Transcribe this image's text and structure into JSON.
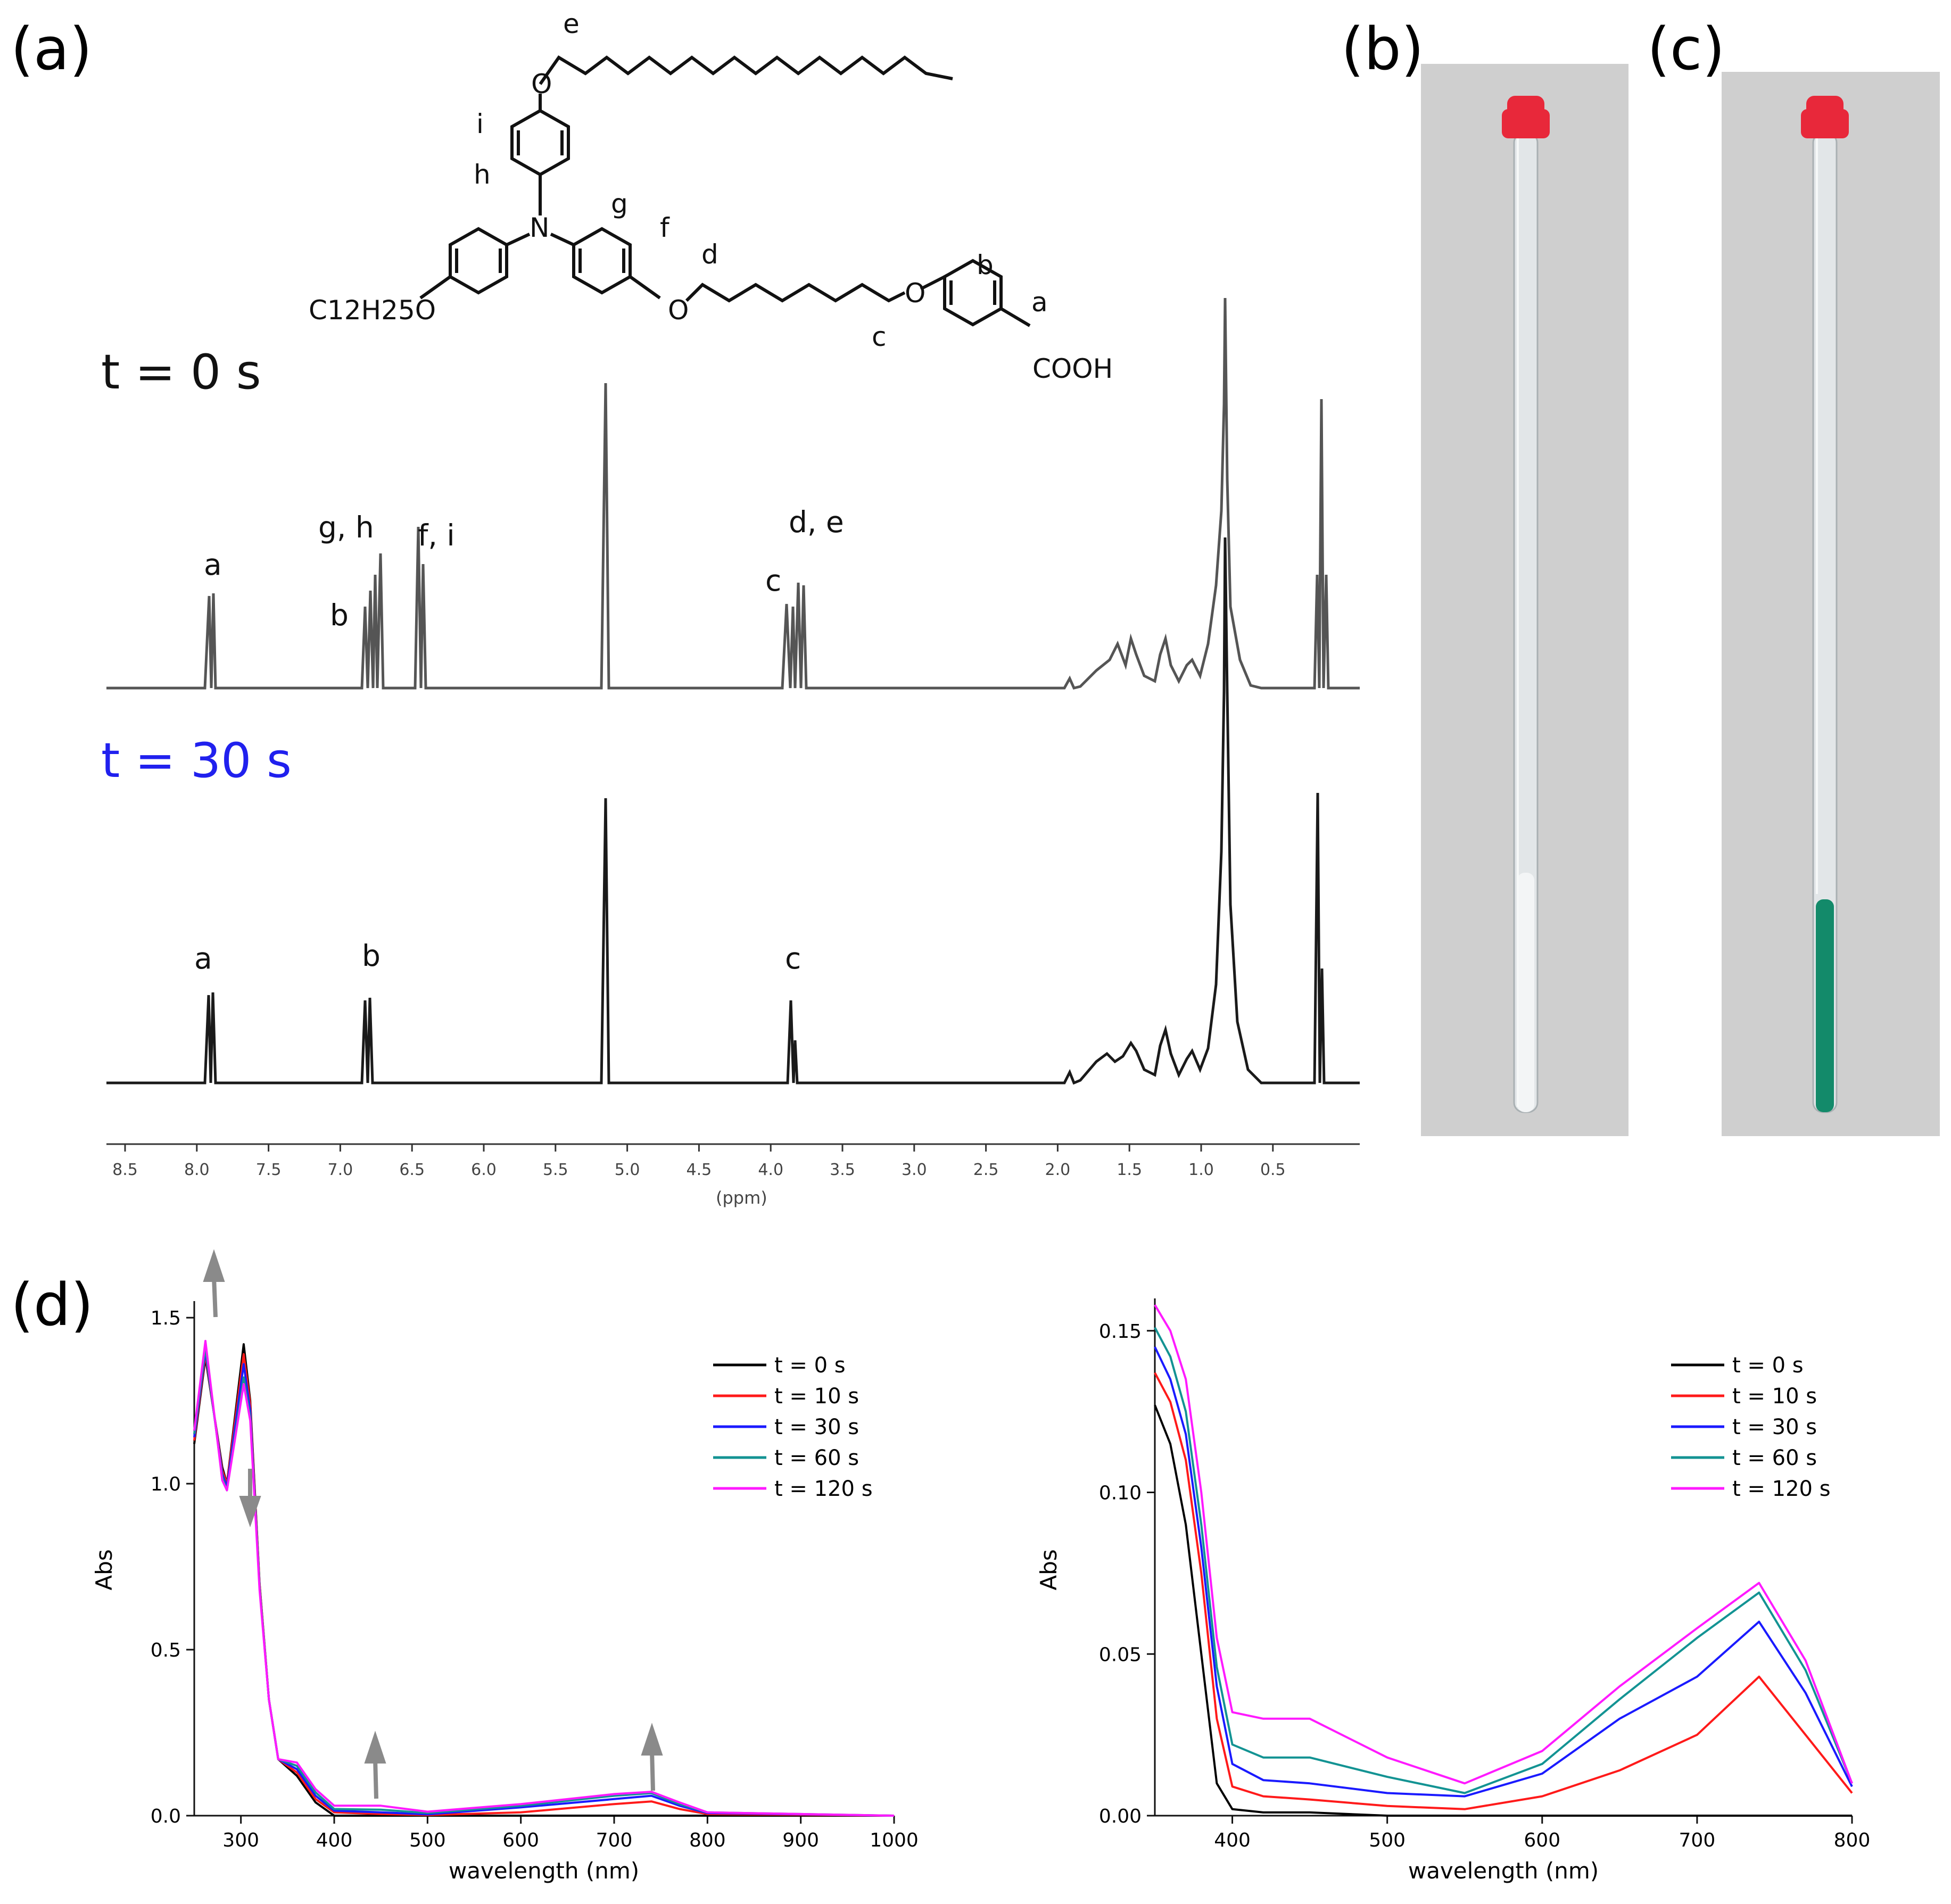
{
  "panel_labels": {
    "a": "(a)",
    "b": "(b)",
    "c": "(c)",
    "d": "(d)"
  },
  "colors": {
    "nmr_top": "#555555",
    "nmr_bottom": "#1a1a1a",
    "label_blue": "#2020ee",
    "series": [
      "#000000",
      "#ff1a1a",
      "#1a1aff",
      "#139393",
      "#ff1aff"
    ],
    "photo_bg": "#cfcfcf",
    "cap": "#e8283a",
    "green_liquid": "#138a6a",
    "arrow": "#8a8a8a"
  },
  "structure": {
    "atom_labels": [
      "e",
      "i",
      "h",
      "g",
      "f",
      "d",
      "b",
      "a",
      "c"
    ],
    "O": "O",
    "N": "N",
    "c12_chain": "C12H25O",
    "acid": "COOH"
  },
  "nmr": {
    "spectrum_top_label": "t = 0 s",
    "spectrum_bottom_label": "t = 30 s",
    "top_peak_labels": [
      "a",
      "g, h",
      "b",
      "f, i",
      "c",
      "d, e"
    ],
    "bottom_peak_labels": [
      "a",
      "b",
      "c"
    ],
    "axis_ticks": [
      "8.5",
      "8.0",
      "7.5",
      "7.0",
      "6.5",
      "6.0",
      "5.5",
      "5.0",
      "4.5",
      "4.0",
      "3.5",
      "3.0",
      "2.5",
      "2.0",
      "1.5",
      "1.0",
      "0.5"
    ],
    "axis_unit": "(ppm)"
  },
  "chart_data": [
    {
      "type": "line",
      "title": "",
      "xlabel": "wavelength (nm)",
      "ylabel": "Abs",
      "xlim": [
        250,
        1000
      ],
      "ylim": [
        0,
        1.55
      ],
      "x_ticks": [
        "300",
        "400",
        "500",
        "600",
        "700",
        "800",
        "900",
        "1000"
      ],
      "y_ticks": [
        "0.0",
        "0.5",
        "1.0",
        "1.5"
      ],
      "legend": [
        "t = 0 s",
        "t = 10 s",
        "t = 30 s",
        "t = 60 s",
        "t = 120 s"
      ],
      "series": [
        {
          "name": "t = 0 s",
          "x": [
            250,
            262,
            280,
            285,
            303,
            310,
            320,
            330,
            340,
            360,
            380,
            400,
            450,
            500,
            600,
            700,
            740,
            770,
            800,
            1000
          ],
          "y": [
            1.12,
            1.38,
            1.05,
            1.0,
            1.42,
            1.25,
            0.7,
            0.35,
            0.17,
            0.12,
            0.04,
            0.0,
            0.0,
            0.0,
            0.0,
            0.0,
            0.0,
            0.0,
            0.0,
            0.0
          ]
        },
        {
          "name": "t = 10 s",
          "x": [
            250,
            262,
            280,
            285,
            303,
            310,
            320,
            330,
            340,
            360,
            380,
            400,
            450,
            500,
            600,
            700,
            740,
            770,
            800,
            1000
          ],
          "y": [
            1.13,
            1.39,
            1.04,
            1.0,
            1.39,
            1.24,
            0.7,
            0.35,
            0.17,
            0.13,
            0.05,
            0.01,
            0.005,
            0.002,
            0.01,
            0.035,
            0.043,
            0.02,
            0.005,
            0.0
          ]
        },
        {
          "name": "t = 30 s",
          "x": [
            250,
            262,
            280,
            285,
            303,
            310,
            320,
            330,
            340,
            360,
            380,
            400,
            450,
            500,
            600,
            700,
            740,
            770,
            800,
            1000
          ],
          "y": [
            1.14,
            1.4,
            1.03,
            0.99,
            1.36,
            1.22,
            0.69,
            0.35,
            0.17,
            0.14,
            0.06,
            0.015,
            0.01,
            0.004,
            0.025,
            0.05,
            0.06,
            0.03,
            0.008,
            0.0
          ]
        },
        {
          "name": "t = 60 s",
          "x": [
            250,
            262,
            280,
            285,
            303,
            310,
            320,
            330,
            340,
            360,
            380,
            400,
            450,
            500,
            600,
            700,
            740,
            770,
            800,
            1000
          ],
          "y": [
            1.15,
            1.41,
            1.02,
            0.98,
            1.32,
            1.2,
            0.69,
            0.35,
            0.17,
            0.15,
            0.07,
            0.02,
            0.018,
            0.008,
            0.03,
            0.06,
            0.068,
            0.035,
            0.01,
            0.0
          ]
        },
        {
          "name": "t = 120 s",
          "x": [
            250,
            262,
            280,
            285,
            303,
            310,
            320,
            330,
            340,
            360,
            380,
            400,
            450,
            500,
            600,
            700,
            740,
            770,
            800,
            1000
          ],
          "y": [
            1.16,
            1.43,
            1.01,
            0.98,
            1.3,
            1.19,
            0.68,
            0.35,
            0.17,
            0.16,
            0.08,
            0.03,
            0.03,
            0.012,
            0.035,
            0.065,
            0.072,
            0.04,
            0.01,
            0.0
          ]
        }
      ]
    },
    {
      "type": "line",
      "title": "",
      "xlabel": "wavelength (nm)",
      "ylabel": "Abs",
      "xlim": [
        350,
        800
      ],
      "ylim": [
        0,
        0.16
      ],
      "x_ticks": [
        "400",
        "500",
        "600",
        "700",
        "800"
      ],
      "y_ticks": [
        "0.00",
        "0.05",
        "0.10",
        "0.15"
      ],
      "legend": [
        "t = 0 s",
        "t = 10 s",
        "t = 30 s",
        "t = 60 s",
        "t = 120 s"
      ],
      "series": [
        {
          "name": "t = 0 s",
          "x": [
            350,
            360,
            370,
            380,
            390,
            400,
            420,
            450,
            500,
            550,
            600,
            650,
            700,
            740,
            770,
            800
          ],
          "y": [
            0.127,
            0.115,
            0.09,
            0.05,
            0.01,
            0.002,
            0.001,
            0.001,
            0.0,
            0.0,
            0.0,
            0.0,
            0.0,
            0.0,
            0.0,
            0.0
          ]
        },
        {
          "name": "t = 10 s",
          "x": [
            350,
            360,
            370,
            380,
            390,
            400,
            420,
            450,
            500,
            550,
            600,
            650,
            700,
            740,
            770,
            800
          ],
          "y": [
            0.137,
            0.128,
            0.11,
            0.075,
            0.03,
            0.009,
            0.006,
            0.005,
            0.003,
            0.002,
            0.006,
            0.014,
            0.025,
            0.043,
            0.025,
            0.007
          ]
        },
        {
          "name": "t = 30 s",
          "x": [
            350,
            360,
            370,
            380,
            390,
            400,
            420,
            450,
            500,
            550,
            600,
            650,
            700,
            740,
            770,
            800
          ],
          "y": [
            0.145,
            0.135,
            0.118,
            0.083,
            0.04,
            0.016,
            0.011,
            0.01,
            0.007,
            0.006,
            0.013,
            0.03,
            0.043,
            0.06,
            0.038,
            0.009
          ]
        },
        {
          "name": "t = 60 s",
          "x": [
            350,
            360,
            370,
            380,
            390,
            400,
            420,
            450,
            500,
            550,
            600,
            650,
            700,
            740,
            770,
            800
          ],
          "y": [
            0.151,
            0.142,
            0.125,
            0.09,
            0.046,
            0.022,
            0.018,
            0.018,
            0.012,
            0.007,
            0.016,
            0.036,
            0.055,
            0.069,
            0.045,
            0.01
          ]
        },
        {
          "name": "t = 120 s",
          "x": [
            350,
            360,
            370,
            380,
            390,
            400,
            420,
            450,
            500,
            550,
            600,
            650,
            700,
            740,
            770,
            800
          ],
          "y": [
            0.158,
            0.15,
            0.135,
            0.1,
            0.055,
            0.032,
            0.03,
            0.03,
            0.018,
            0.01,
            0.02,
            0.04,
            0.058,
            0.072,
            0.048,
            0.01
          ]
        }
      ]
    }
  ]
}
